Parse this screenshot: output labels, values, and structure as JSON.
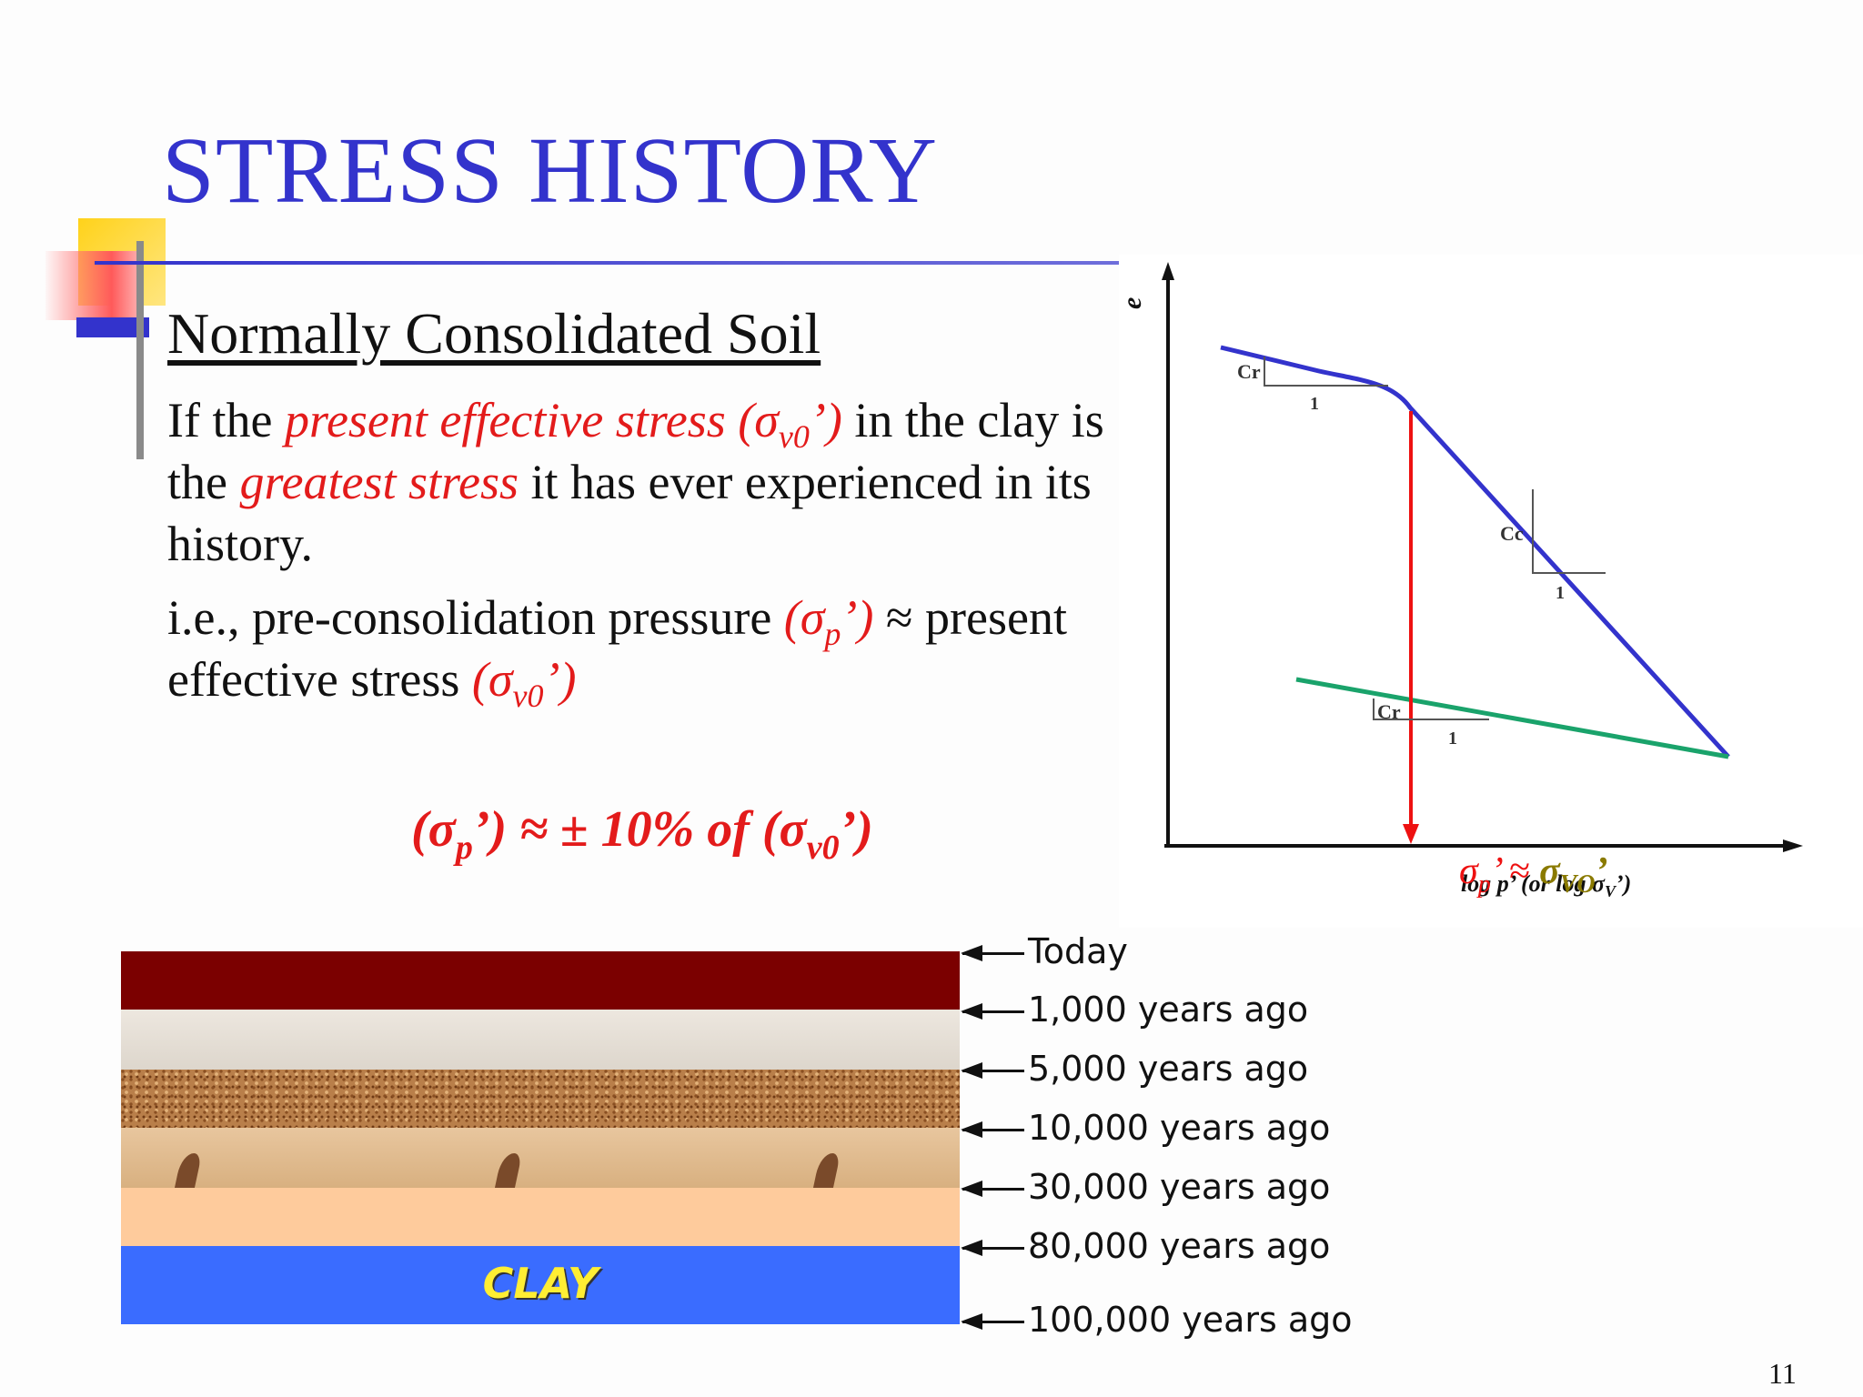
{
  "slide": {
    "title": "STRESS HISTORY",
    "heading": "Normally Consolidated Soil",
    "para1": {
      "t1": "If the ",
      "r1": "present effective stress (σ",
      "r1_sub": "v0",
      "r1_end": "’)",
      "t2": " in the clay is the ",
      "r2": "greatest stress",
      "t3": " it has ever experienced in its history."
    },
    "para2": {
      "t1": "i.e., pre-consolidation pressure ",
      "r1": "(σ",
      "r1_sub": "p",
      "r1_end": "’)",
      "t2": " ≈ present effective stress ",
      "r2": "(σ",
      "r2_sub": "v0",
      "r2_end": "’)"
    },
    "formula": {
      "a": "(σ",
      "a_sub": "p",
      "b": "’) ≈ ± 10% of (σ",
      "b_sub": "v0",
      "c": "’)"
    },
    "page_number": "11"
  },
  "graph": {
    "y_axis_label": "e",
    "x_axis_label": "log p’ (or log σ",
    "x_axis_label_sub": "V",
    "x_axis_label_end": "’)",
    "cr_label_top": "Cr",
    "one_top": "1",
    "cc_label": "Cc",
    "one_mid": "1",
    "cr_label_bottom": "Cr",
    "one_bottom": "1",
    "sigma_p": "σ",
    "sigma_p_sub": "p",
    "approx": "’ ≈",
    "sigma_vo": "σ",
    "sigma_vo_sub": "VO",
    "sigma_vo_end": "’",
    "colors": {
      "curve": "#3333cc",
      "unload": "#1aa36b",
      "drop": "#ee1111",
      "sigma_vo": "#8a7a00"
    }
  },
  "strata": {
    "layer_label": "CLAY",
    "times": [
      "Today",
      "1,000 years ago",
      "5,000 years ago",
      "10,000 years ago",
      "30,000 years ago",
      "80,000 years ago",
      "100,000 years ago"
    ]
  }
}
